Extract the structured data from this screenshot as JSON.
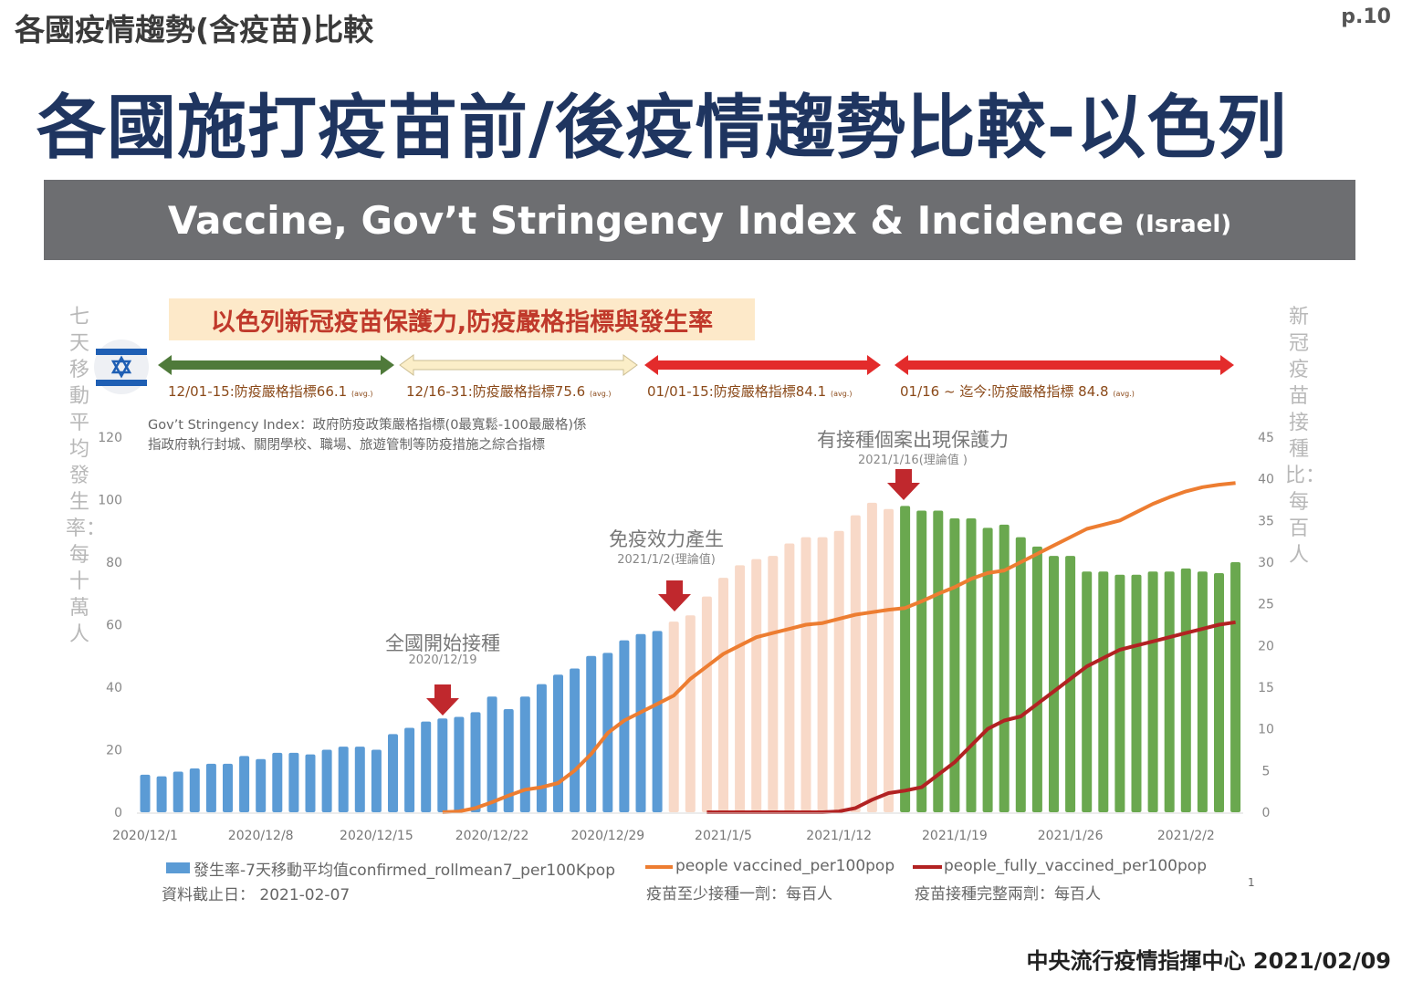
{
  "header": {
    "top_title": "各國疫情趨勢(含疫苗)比較",
    "page_number": "p.10",
    "main_title": "各國施打疫苗前/後疫情趨勢比較-以色列",
    "banner_title": "Vaccine,  Gov’t Stringency Index & Incidence",
    "banner_country": "(Israel)"
  },
  "chart_box_title": "以色列新冠疫苗保護力,防疫嚴格指標與發生率",
  "flag_icon": "israel-flag-icon",
  "stringency_periods": [
    {
      "label": "12/01-15:防疫嚴格指標66.1",
      "avg": "(avg.)",
      "color": "#4f7a3a"
    },
    {
      "label": "12/16-31:防疫嚴格指標75.6",
      "avg": "(avg.)",
      "color": "#fbeec8"
    },
    {
      "label": "01/01-15:防疫嚴格指標84.1",
      "avg": "(avg.)",
      "color": "#e32b2b"
    },
    {
      "label": "01/16 ~ 迄今:防疫嚴格指標 84.8",
      "avg": "(avg.)",
      "color": "#e32b2b"
    }
  ],
  "definition": {
    "line1": "Gov’t Stringency Index：政府防疫政策嚴格指標(0最寬鬆-100最嚴格)係",
    "line2": "指政府執行封城、關閉學校、職場、旅遊管制等防疫措施之綜合指標"
  },
  "annotations": [
    {
      "title": "全國開始接種",
      "date": "2020/12/19"
    },
    {
      "title": "免疫效力產生",
      "date": "2021/1/2(理論值)"
    },
    {
      "title": "有接種個案出現保護力",
      "date": "2021/1/16(理論值 )"
    }
  ],
  "left_axis_title": "七天移動平均發生率：每十萬人",
  "right_axis_title": "新冠疫苗接種比：每百人",
  "legend": {
    "incidence": "發生率-7天移動平均值confirmed_rollmean7_per100Kpop",
    "vaccinated": "people vaccined_per100pop",
    "vaccinated_sub": "疫苗至少接種一劑：每百人",
    "fully": "people_fully_vaccined_per100pop",
    "fully_sub": "疫苗接種完整兩劑：每百人",
    "data_cutoff": "資料截止日：  2021-02-07",
    "footnote": "1"
  },
  "footer": "中央流行疫情指揮中心  2021/02/09",
  "chart_data": {
    "type": "bar",
    "start_date": "2020-12-01",
    "x_ticks": [
      "2020/12/1",
      "2020/12/8",
      "2020/12/15",
      "2020/12/22",
      "2020/12/29",
      "2021/1/5",
      "2021/1/12",
      "2021/1/19",
      "2021/1/26",
      "2021/2/2"
    ],
    "y_left": {
      "ticks": [
        "0",
        "20",
        "40",
        "60",
        "80",
        "100",
        "120"
      ],
      "range": [
        0,
        120
      ]
    },
    "y_right": {
      "ticks": [
        "0",
        "5",
        "10",
        "15",
        "20",
        "25",
        "30",
        "35",
        "40",
        "45"
      ],
      "range": [
        0,
        45
      ]
    },
    "bar_colors": {
      "before": "#5b9bd5",
      "immunizing": "#f8d9c8",
      "protected": "#6aa84f"
    },
    "series": [
      {
        "name": "confirmed_rollmean7_per100Kpop",
        "axis": "left",
        "type": "bar",
        "phase_lengths": [
          32,
          14,
          21
        ],
        "values": [
          12,
          11.5,
          13,
          14,
          15.5,
          15.5,
          18,
          17,
          19,
          19,
          18.5,
          20,
          21,
          21,
          20,
          25,
          27,
          29,
          30,
          30.5,
          32,
          37,
          33,
          37,
          41,
          44,
          46,
          50,
          51,
          55,
          57,
          58,
          61,
          63,
          69,
          75,
          79,
          81,
          82,
          86,
          88,
          88,
          90,
          95,
          99,
          97,
          98,
          96.5,
          96.5,
          94,
          94,
          91,
          92,
          88,
          85,
          82,
          82,
          77,
          77,
          76,
          76,
          77,
          77,
          78,
          77,
          76.5,
          80
        ]
      },
      {
        "name": "people vaccined_per100pop",
        "axis": "right",
        "type": "line",
        "color": "#ed7d31",
        "start_index": 18,
        "values": [
          0,
          0.1,
          0.5,
          1.2,
          2,
          2.7,
          3,
          3.5,
          5,
          7,
          9.5,
          11,
          12,
          13,
          14,
          16,
          17.5,
          19,
          20,
          21,
          21.5,
          22,
          22.5,
          22.7,
          23.2,
          23.7,
          24,
          24.3,
          24.5,
          25.3,
          26.2,
          27,
          28,
          28.7,
          29,
          30,
          31,
          32,
          33,
          34,
          34.5,
          35,
          36,
          37,
          37.8,
          38.5,
          39,
          39.3,
          39.5
        ]
      },
      {
        "name": "people_fully_vaccined_per100pop",
        "axis": "right",
        "type": "line",
        "color": "#b22222",
        "start_index": 34,
        "values": [
          0,
          0,
          0,
          0,
          0,
          0,
          0,
          0,
          0.1,
          0.5,
          1.5,
          2.3,
          2.6,
          3,
          4.5,
          6,
          8,
          10,
          11,
          11.5,
          13,
          14.5,
          16,
          17.5,
          18.5,
          19.5,
          20,
          20.5,
          21,
          21.5,
          22,
          22.5,
          22.8
        ]
      }
    ]
  }
}
